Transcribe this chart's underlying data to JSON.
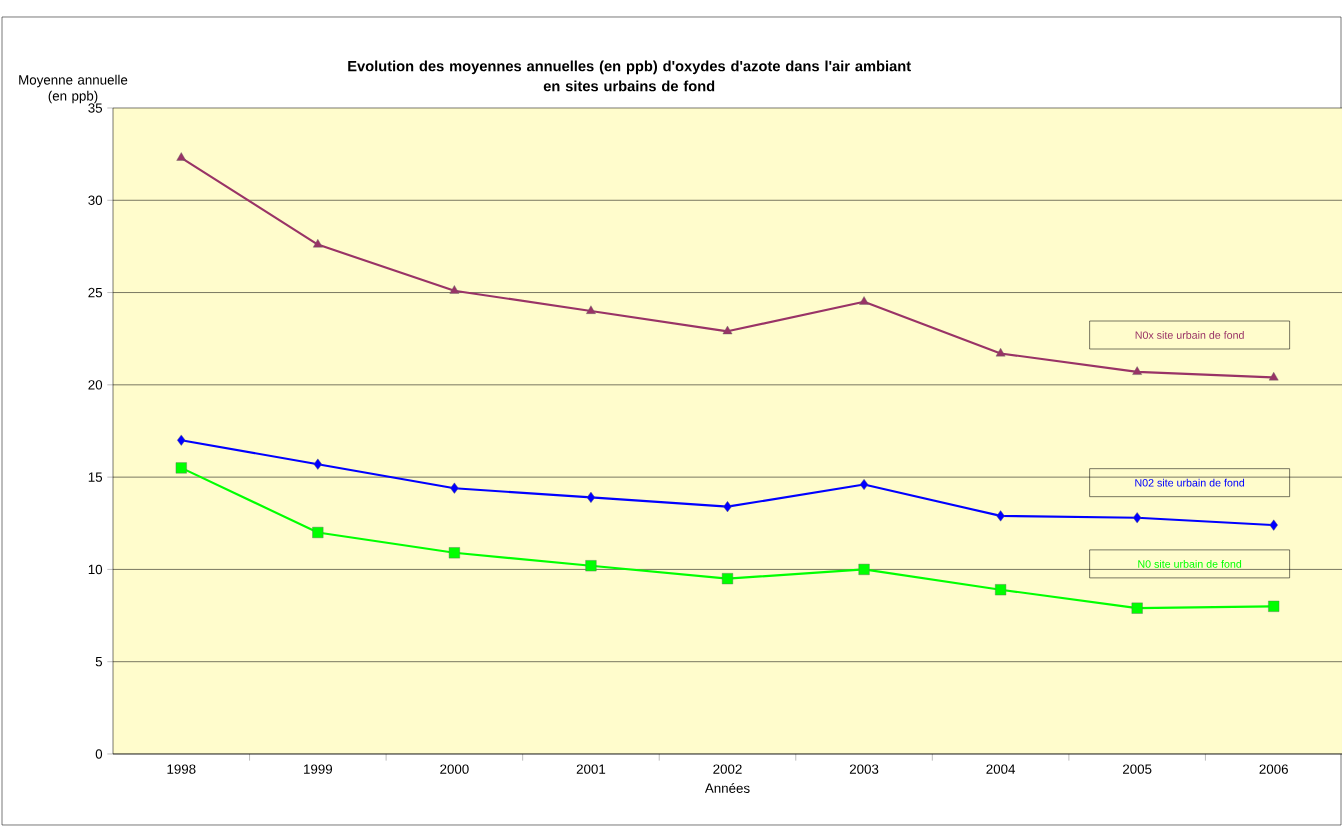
{
  "chart_data": {
    "type": "line",
    "title": "Evolution des moyennes annuelles (en ppb) d'oxydes d'azote dans l'air ambiant\nen sites urbains de fond",
    "xlabel": "Années",
    "ylabel": "Moyenne annuelle\n(en ppb)",
    "categories": [
      "1998",
      "1999",
      "2000",
      "2001",
      "2002",
      "2003",
      "2004",
      "2005",
      "2006"
    ],
    "series": [
      {
        "name": "N0x site urbain de fond",
        "color": "#993366",
        "marker": "triangle",
        "values": [
          32.3,
          27.6,
          25.1,
          24.0,
          22.9,
          24.5,
          21.7,
          20.7,
          20.4
        ]
      },
      {
        "name": "N02 site urbain de fond",
        "color": "#0000ff",
        "marker": "diamond",
        "values": [
          17.0,
          15.7,
          14.4,
          13.9,
          13.4,
          14.6,
          12.9,
          12.8,
          12.4
        ]
      },
      {
        "name": "N0 site urbain de fond",
        "color": "#00ff00",
        "marker": "square",
        "values": [
          15.5,
          12.0,
          10.9,
          10.2,
          9.5,
          10.0,
          8.9,
          7.9,
          8.0
        ]
      }
    ],
    "ylim": [
      0,
      35
    ],
    "yticks": [
      0,
      5,
      10,
      15,
      20,
      25,
      30,
      35
    ],
    "grid": "y",
    "line_style": "solid"
  }
}
